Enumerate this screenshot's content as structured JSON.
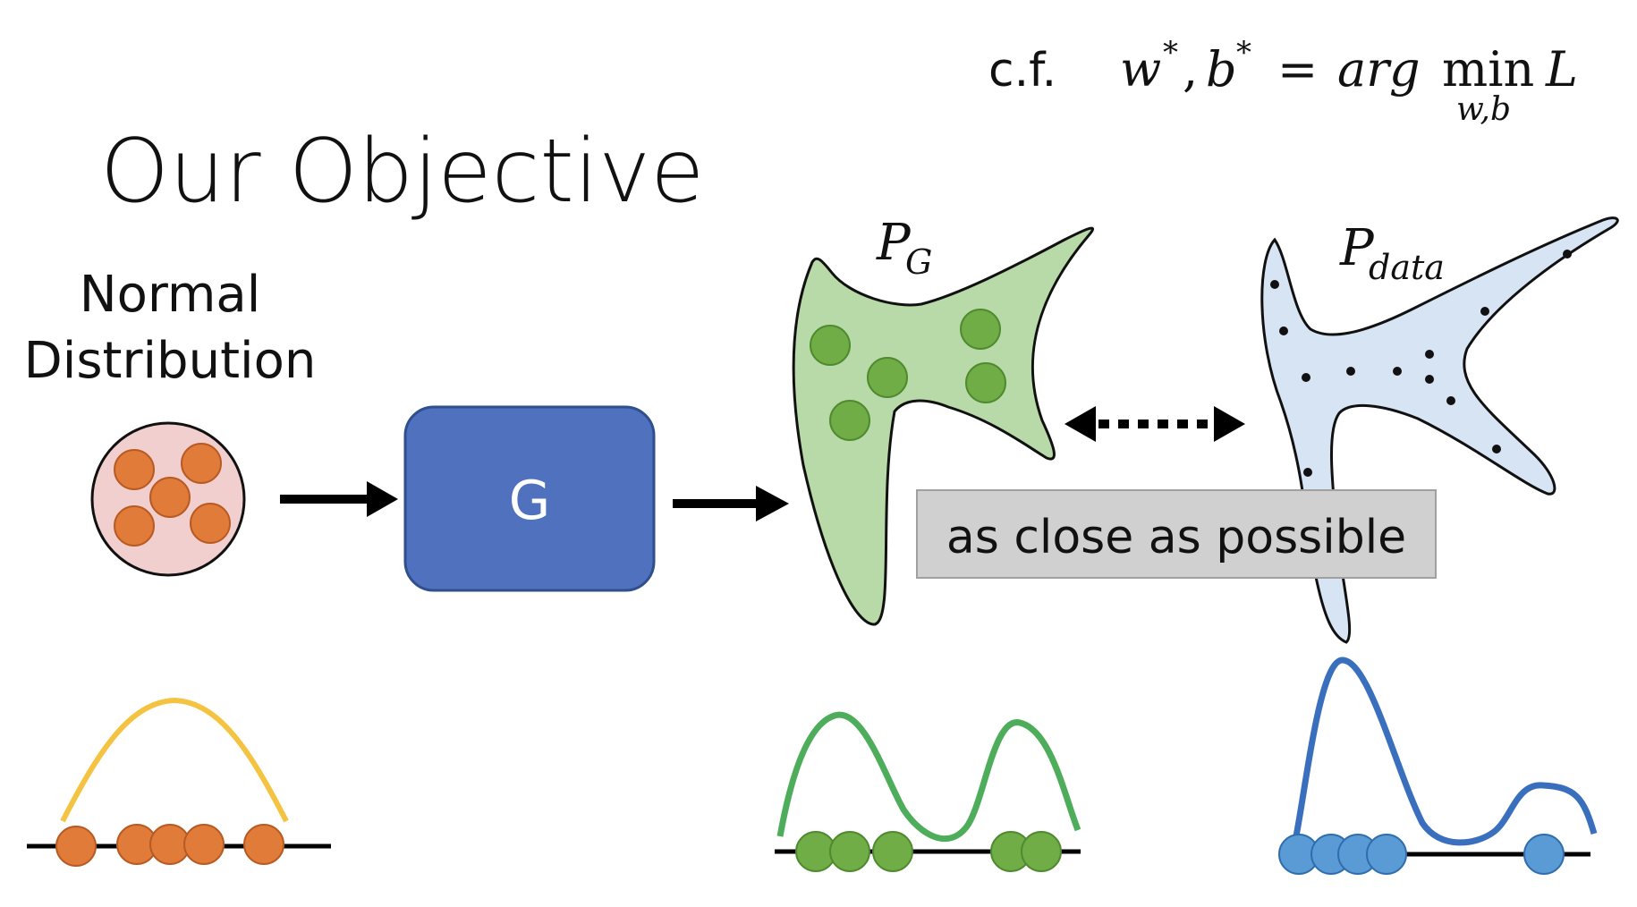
{
  "slide": {
    "title": "Our Objective",
    "input_label_line1": "Normal",
    "input_label_line2": "Distribution",
    "generator_label": "G",
    "pg_label": "P",
    "pg_subscript": "G",
    "pdata_label": "P",
    "pdata_subscript": "data",
    "compare_label": "as close as possible"
  },
  "formula": {
    "prefix": "c.f.",
    "lhs_w": "w",
    "star": "*",
    "comma": ",",
    "lhs_b": "b",
    "equals": "=",
    "argmin_arg": "arg",
    "argmin_min": "min",
    "argmin_sub": "w,b",
    "loss": "L"
  },
  "colors": {
    "normal_dot": "#E07B39",
    "normal_circle_bg": "#F2CFCF",
    "generator_box": "#4F71BE",
    "pg_blob": "#B8D9A8",
    "pg_dot": "#70AD47",
    "pdata_blob": "#D6E4F4",
    "pdata_dot": "#5B9BD5",
    "normal_curve": "#F5C342",
    "pg_curve": "#4EAD5B",
    "pdata_curve": "#3A6FBD",
    "compare_box": "#D0D0D0"
  }
}
